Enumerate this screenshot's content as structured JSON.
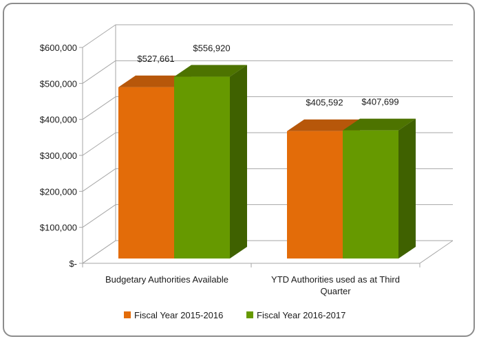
{
  "chart_data": {
    "type": "bar",
    "title": "",
    "xlabel": "",
    "ylabel": "",
    "categories": [
      "Budgetary Authorities Available",
      "YTD Authorities used as at Third Quarter"
    ],
    "category_label_lines": [
      [
        "Budgetary Authorities Available"
      ],
      [
        "YTD Authorities used as at Third",
        "Quarter"
      ]
    ],
    "series": [
      {
        "name": "Fiscal Year 2015-2016",
        "values": [
          527661,
          405592
        ],
        "labels": [
          "$527,661",
          "$405,592"
        ],
        "color": "#e36c09",
        "top_color": "#b7570a",
        "side_color": "#b4560a"
      },
      {
        "name": "Fiscal Year 2016-2017",
        "values": [
          556920,
          407699
        ],
        "labels": [
          "$556,920",
          "$407,699"
        ],
        "color": "#669900",
        "top_color": "#4d7300",
        "side_color": "#3f6100"
      }
    ],
    "ylim": [
      0,
      600000
    ],
    "y_ticks": [
      0,
      100000,
      200000,
      300000,
      400000,
      500000,
      600000
    ],
    "y_tick_labels": [
      "$-",
      "$100,000",
      "$200,000",
      "$300,000",
      "$400,000",
      "$500,000",
      "$600,000"
    ],
    "grid": true,
    "style": "3d-clustered-column",
    "legend_position": "bottom"
  }
}
